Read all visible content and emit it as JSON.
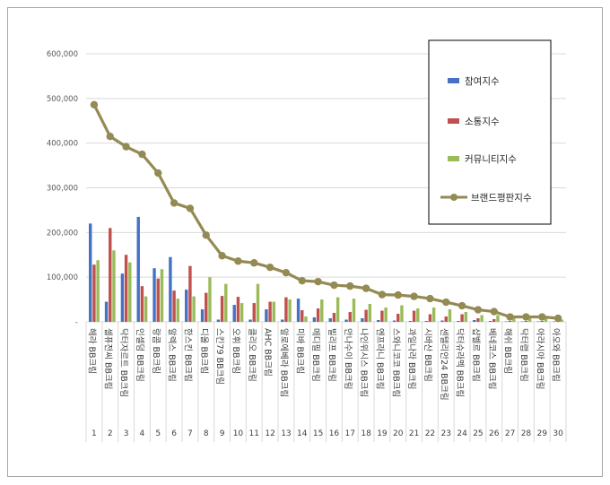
{
  "chart_data": {
    "type": "bar",
    "title": "",
    "xlabel": "",
    "ylabel": "",
    "ylim": [
      0,
      600000
    ],
    "yticks": [
      "-",
      "100,000",
      "200,000",
      "300,000",
      "400,000",
      "500,000",
      "600,000"
    ],
    "grid": true,
    "legend_position": "top-right",
    "categories": [
      "헤라 BB크림",
      "셀퓨전씨 BB크림",
      "닥터자르트 BB크림",
      "인셀덤 BB크림",
      "랑콤 BB크림",
      "알렉스 BB크림",
      "한스킨 BB크림",
      "디올 BB크림",
      "스킨79 BB크림",
      "오휘 BB크림",
      "클리오 BB크림",
      "AHC BB크림",
      "알로에베라 BB크림",
      "미바 BB크림",
      "메디필 BB크림",
      "빌리프 BB크림",
      "안나수이 BB크림",
      "나인위시스 BB크림",
      "엔프라니 BB크림",
      "스와니코코 BB크림",
      "과일나라 BB크림",
      "시바산 BB크림",
      "센텔리안24 BB크림",
      "닥터슈라멕 BB크림",
      "샵벨르 BB크림",
      "베네코스 BB크림",
      "해쉬 BB크림",
      "닥터랩 BB크림",
      "아라시아 BB크림",
      "아오와 BB크림"
    ],
    "ranks": [
      "1",
      "2",
      "3",
      "4",
      "5",
      "6",
      "7",
      "8",
      "9",
      "10",
      "11",
      "12",
      "13",
      "14",
      "15",
      "16",
      "17",
      "18",
      "19",
      "20",
      "21",
      "22",
      "23",
      "24",
      "25",
      "26",
      "27",
      "28",
      "29",
      "30"
    ],
    "series": [
      {
        "name": "참여지수",
        "kind": "bar",
        "color": "#4472c4",
        "values": [
          220000,
          45000,
          108000,
          235000,
          120000,
          145000,
          72000,
          28000,
          5000,
          38000,
          5000,
          28000,
          5000,
          52000,
          10000,
          8000,
          5000,
          8000,
          4000,
          3000,
          2000,
          2000,
          3000,
          2000,
          4000,
          2000,
          1000,
          1000,
          1000,
          1000
        ]
      },
      {
        "name": "소통지수",
        "kind": "bar",
        "color": "#c0504d",
        "values": [
          128000,
          210000,
          150000,
          80000,
          97000,
          70000,
          125000,
          65000,
          58000,
          56000,
          42000,
          45000,
          55000,
          26000,
          30000,
          20000,
          22000,
          27000,
          25000,
          18000,
          25000,
          17000,
          12000,
          17000,
          8000,
          6000,
          2000,
          2000,
          2000,
          2000
        ]
      },
      {
        "name": "커뮤니티지수",
        "kind": "bar",
        "color": "#9bbb59",
        "values": [
          138000,
          160000,
          133000,
          57000,
          118000,
          52000,
          57000,
          100000,
          85000,
          42000,
          85000,
          45000,
          50000,
          12000,
          50000,
          55000,
          52000,
          40000,
          32000,
          37000,
          30000,
          32000,
          28000,
          22000,
          15000,
          15000,
          8000,
          8000,
          8000,
          5000
        ]
      },
      {
        "name": "브랜드평판지수",
        "kind": "line",
        "color": "#948a54",
        "values": [
          486000,
          415000,
          392000,
          375000,
          333000,
          266000,
          254000,
          194000,
          148000,
          136000,
          132000,
          122000,
          110000,
          92000,
          90000,
          82000,
          80000,
          75000,
          61000,
          60000,
          57000,
          52000,
          44000,
          36000,
          27000,
          23000,
          11000,
          11000,
          11000,
          8000
        ]
      }
    ]
  }
}
